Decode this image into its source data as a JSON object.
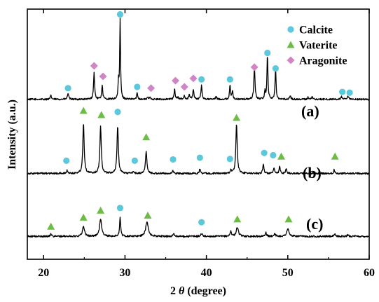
{
  "chart_data": {
    "type": "line",
    "title": "",
    "xlabel_parts": [
      "2 ",
      "θ",
      " (degree)"
    ],
    "ylabel": "Intensity (a.u.)",
    "xlim": [
      18,
      60
    ],
    "ylim": [
      0,
      1
    ],
    "x_ticks": [
      20,
      30,
      40,
      50,
      60
    ],
    "x_tick_labels": [
      "20",
      "30",
      "40",
      "50",
      "60"
    ],
    "grid": false,
    "legend": {
      "placement": "top-right",
      "entries": [
        {
          "label": "Calcite",
          "marker": "circle",
          "color": "#5bc8dc"
        },
        {
          "label": "Vaterite",
          "marker": "triangle",
          "color": "#6cbd45"
        },
        {
          "label": "Aragonite",
          "marker": "diamond",
          "color": "#d085c6"
        }
      ]
    },
    "phase_colors": {
      "calcite": "#5bc8dc",
      "vaterite": "#6cbd45",
      "aragonite": "#d085c6"
    },
    "line_color": "#000000",
    "series": [
      {
        "name": "(a)",
        "label": "(a)",
        "baseline": 0.6395,
        "noise": 0.0035,
        "peaks": [
          {
            "x": 20.9,
            "h": 0.015,
            "w": 0.08
          },
          {
            "x": 23.0,
            "h": 0.025,
            "w": 0.08
          },
          {
            "x": 26.2,
            "h": 0.105,
            "w": 0.08
          },
          {
            "x": 27.2,
            "h": 0.055,
            "w": 0.08
          },
          {
            "x": 29.2,
            "h": 0.07,
            "w": 0.06
          },
          {
            "x": 29.4,
            "h": 0.318,
            "w": 0.06
          },
          {
            "x": 31.5,
            "h": 0.025,
            "w": 0.08
          },
          {
            "x": 32.8,
            "h": 0.007,
            "w": 0.08
          },
          {
            "x": 33.1,
            "h": 0.009,
            "w": 0.08
          },
          {
            "x": 36.1,
            "h": 0.04,
            "w": 0.08
          },
          {
            "x": 36.5,
            "h": 0.008,
            "w": 0.08
          },
          {
            "x": 37.3,
            "h": 0.015,
            "w": 0.08
          },
          {
            "x": 37.9,
            "h": 0.02,
            "w": 0.08
          },
          {
            "x": 38.4,
            "h": 0.04,
            "w": 0.08
          },
          {
            "x": 39.4,
            "h": 0.055,
            "w": 0.08
          },
          {
            "x": 41.2,
            "h": 0.01,
            "w": 0.08
          },
          {
            "x": 42.9,
            "h": 0.055,
            "w": 0.07
          },
          {
            "x": 43.2,
            "h": 0.035,
            "w": 0.07
          },
          {
            "x": 45.9,
            "h": 0.13,
            "w": 0.08
          },
          {
            "x": 47.2,
            "h": 0.03,
            "w": 0.07
          },
          {
            "x": 47.5,
            "h": 0.175,
            "w": 0.07
          },
          {
            "x": 48.5,
            "h": 0.125,
            "w": 0.07
          },
          {
            "x": 50.3,
            "h": 0.015,
            "w": 0.08
          },
          {
            "x": 52.5,
            "h": 0.008,
            "w": 0.08
          },
          {
            "x": 53.0,
            "h": 0.01,
            "w": 0.08
          },
          {
            "x": 56.6,
            "h": 0.01,
            "w": 0.08
          },
          {
            "x": 57.4,
            "h": 0.012,
            "w": 0.08
          }
        ],
        "markers": [
          {
            "phase": "calcite",
            "x": 23.0,
            "y": 0.684
          },
          {
            "phase": "aragonite",
            "x": 26.2,
            "y": 0.773
          },
          {
            "phase": "aragonite",
            "x": 27.3,
            "y": 0.731
          },
          {
            "phase": "calcite",
            "x": 29.4,
            "y": 0.979
          },
          {
            "phase": "calcite",
            "x": 31.5,
            "y": 0.689
          },
          {
            "phase": "aragonite",
            "x": 33.2,
            "y": 0.684
          },
          {
            "phase": "aragonite",
            "x": 36.2,
            "y": 0.714
          },
          {
            "phase": "aragonite",
            "x": 37.3,
            "y": 0.689
          },
          {
            "phase": "aragonite",
            "x": 38.4,
            "y": 0.723
          },
          {
            "phase": "calcite",
            "x": 39.4,
            "y": 0.719
          },
          {
            "phase": "calcite",
            "x": 42.9,
            "y": 0.719
          },
          {
            "phase": "aragonite",
            "x": 45.9,
            "y": 0.768
          },
          {
            "phase": "calcite",
            "x": 47.5,
            "y": 0.825
          },
          {
            "phase": "calcite",
            "x": 48.5,
            "y": 0.763
          },
          {
            "phase": "calcite",
            "x": 56.7,
            "y": 0.669
          },
          {
            "phase": "calcite",
            "x": 57.6,
            "y": 0.666
          }
        ]
      },
      {
        "name": "(b)",
        "label": "(b)",
        "baseline": 0.343,
        "noise": 0.0035,
        "peaks": [
          {
            "x": 22.9,
            "h": 0.012,
            "w": 0.08
          },
          {
            "x": 24.9,
            "h": 0.2,
            "w": 0.1
          },
          {
            "x": 27.0,
            "h": 0.19,
            "w": 0.1
          },
          {
            "x": 29.1,
            "h": 0.19,
            "w": 0.1
          },
          {
            "x": 31.0,
            "h": 0.008,
            "w": 0.08
          },
          {
            "x": 32.6,
            "h": 0.09,
            "w": 0.1
          },
          {
            "x": 35.9,
            "h": 0.01,
            "w": 0.08
          },
          {
            "x": 39.2,
            "h": 0.018,
            "w": 0.08
          },
          {
            "x": 43.0,
            "h": 0.013,
            "w": 0.08
          },
          {
            "x": 43.7,
            "h": 0.2,
            "w": 0.1
          },
          {
            "x": 47.0,
            "h": 0.04,
            "w": 0.08
          },
          {
            "x": 48.3,
            "h": 0.02,
            "w": 0.08
          },
          {
            "x": 49.0,
            "h": 0.027,
            "w": 0.08
          },
          {
            "x": 49.8,
            "h": 0.02,
            "w": 0.08
          },
          {
            "x": 55.7,
            "h": 0.015,
            "w": 0.08
          }
        ],
        "markers": [
          {
            "phase": "calcite",
            "x": 22.8,
            "y": 0.394
          },
          {
            "phase": "vaterite",
            "x": 24.9,
            "y": 0.594
          },
          {
            "phase": "vaterite",
            "x": 27.1,
            "y": 0.577
          },
          {
            "phase": "calcite",
            "x": 29.1,
            "y": 0.589
          },
          {
            "phase": "calcite",
            "x": 31.2,
            "y": 0.394
          },
          {
            "phase": "vaterite",
            "x": 32.6,
            "y": 0.488
          },
          {
            "phase": "calcite",
            "x": 35.9,
            "y": 0.399
          },
          {
            "phase": "calcite",
            "x": 39.2,
            "y": 0.406
          },
          {
            "phase": "calcite",
            "x": 42.9,
            "y": 0.401
          },
          {
            "phase": "vaterite",
            "x": 43.7,
            "y": 0.566
          },
          {
            "phase": "calcite",
            "x": 47.1,
            "y": 0.425
          },
          {
            "phase": "calcite",
            "x": 48.2,
            "y": 0.416
          },
          {
            "phase": "vaterite",
            "x": 49.2,
            "y": 0.411
          },
          {
            "phase": "vaterite",
            "x": 55.8,
            "y": 0.411
          }
        ]
      },
      {
        "name": "(c)",
        "label": "(c)",
        "baseline": 0.0915,
        "noise": 0.0035,
        "peaks": [
          {
            "x": 20.9,
            "h": 0.01,
            "w": 0.1
          },
          {
            "x": 24.9,
            "h": 0.04,
            "w": 0.15
          },
          {
            "x": 27.0,
            "h": 0.07,
            "w": 0.15
          },
          {
            "x": 29.4,
            "h": 0.075,
            "w": 0.08
          },
          {
            "x": 32.7,
            "h": 0.06,
            "w": 0.18
          },
          {
            "x": 36.0,
            "h": 0.01,
            "w": 0.1
          },
          {
            "x": 39.4,
            "h": 0.012,
            "w": 0.1
          },
          {
            "x": 43.0,
            "h": 0.02,
            "w": 0.1
          },
          {
            "x": 43.8,
            "h": 0.035,
            "w": 0.16
          },
          {
            "x": 47.3,
            "h": 0.015,
            "w": 0.1
          },
          {
            "x": 48.4,
            "h": 0.012,
            "w": 0.1
          },
          {
            "x": 50.0,
            "h": 0.03,
            "w": 0.16
          },
          {
            "x": 55.8,
            "h": 0.008,
            "w": 0.1
          },
          {
            "x": 57.4,
            "h": 0.006,
            "w": 0.1
          }
        ],
        "markers": [
          {
            "phase": "vaterite",
            "x": 20.9,
            "y": 0.131
          },
          {
            "phase": "vaterite",
            "x": 24.9,
            "y": 0.167
          },
          {
            "phase": "vaterite",
            "x": 27.0,
            "y": 0.195
          },
          {
            "phase": "calcite",
            "x": 29.4,
            "y": 0.205
          },
          {
            "phase": "vaterite",
            "x": 32.8,
            "y": 0.175
          },
          {
            "phase": "calcite",
            "x": 39.4,
            "y": 0.148
          },
          {
            "phase": "vaterite",
            "x": 43.8,
            "y": 0.16
          },
          {
            "phase": "vaterite",
            "x": 50.1,
            "y": 0.16
          }
        ]
      }
    ]
  }
}
